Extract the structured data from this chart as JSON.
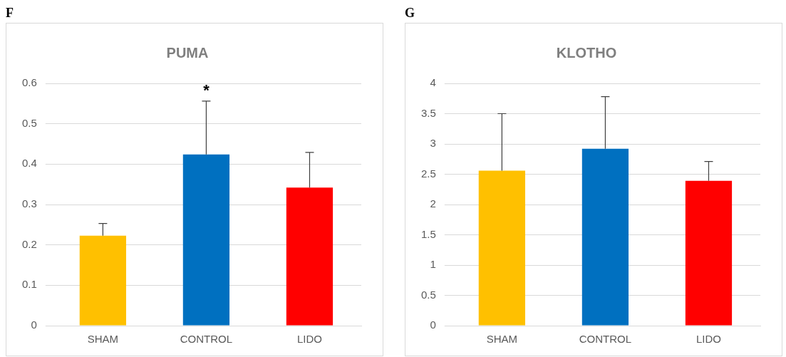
{
  "chart_data": [
    {
      "type": "bar",
      "title": "PUMA",
      "annotations": [
        "F",
        {
          "text": "*",
          "x": "CONTROL",
          "y": 0.556
        }
      ],
      "categories": [
        "SHAM",
        "CONTROL",
        "LIDO"
      ],
      "values": [
        0.223,
        0.424,
        0.342
      ],
      "colors": [
        "#ffc000",
        "#0070c0",
        "#ff0000"
      ],
      "errors": [
        [
          0.223,
          0.253
        ],
        [
          0.424,
          0.556
        ],
        [
          0.342,
          0.429
        ]
      ],
      "ylim": [
        0,
        0.6
      ],
      "yticks": [
        {
          "value": 0,
          "label": "0"
        },
        0.1,
        0.2,
        0.3,
        0.4,
        0.5,
        0.6
      ],
      "grid": "y",
      "legend": false
    },
    {
      "type": "bar",
      "title": "KLOTHO",
      "annotations": [
        "G"
      ],
      "categories": [
        "SHAM",
        "CONTROL",
        "LIDO"
      ],
      "values": [
        2.56,
        2.92,
        2.39
      ],
      "colors": [
        "#ffc000",
        "#0070c0",
        "#ff0000"
      ],
      "errors": [
        [
          2.56,
          3.5
        ],
        [
          2.92,
          3.78
        ],
        [
          2.39,
          2.71
        ]
      ],
      "ylim": [
        0,
        4
      ],
      "yticks": [
        0,
        0.5,
        1,
        1.5,
        2,
        2.5,
        3,
        3.5,
        4
      ],
      "grid": "y",
      "legend": false
    }
  ]
}
